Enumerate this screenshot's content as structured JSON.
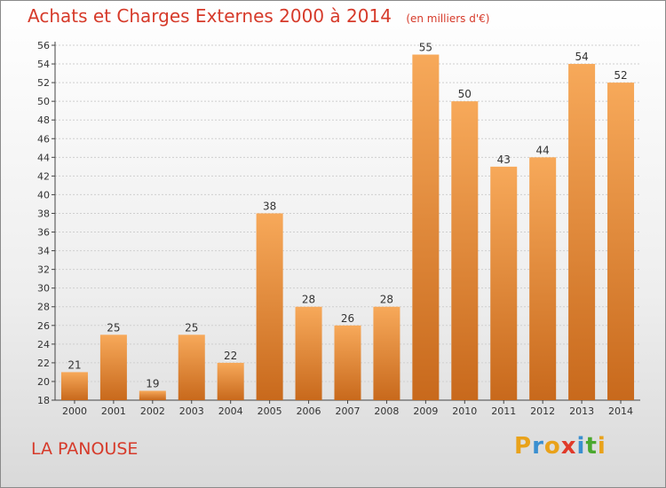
{
  "title": "Achats et Charges Externes 2000 à 2014",
  "subtitle": "(en milliers d'€)",
  "place_name": "LA PANOUSE",
  "logo": {
    "letters": [
      "P",
      "r",
      "o",
      "x",
      "i",
      "t",
      "i"
    ],
    "colors": [
      "#e9a21a",
      "#3a8fd0",
      "#e9a21a",
      "#e03a2a",
      "#3a8fd0",
      "#4aa82e",
      "#e9a21a"
    ]
  },
  "colors": {
    "bar_top": "#f7a95a",
    "bar_bottom": "#c8691c",
    "grid": "#cfcfcf",
    "axis": "#444444",
    "title": "#d63a2a"
  },
  "chart_data": {
    "type": "bar",
    "categories": [
      "2000",
      "2001",
      "2002",
      "2003",
      "2004",
      "2005",
      "2006",
      "2007",
      "2008",
      "2009",
      "2010",
      "2011",
      "2012",
      "2013",
      "2014"
    ],
    "values": [
      21,
      25,
      19,
      25,
      22,
      38,
      28,
      26,
      28,
      55,
      50,
      43,
      44,
      54,
      52
    ],
    "yticks": [
      18,
      20,
      22,
      24,
      26,
      28,
      30,
      32,
      34,
      36,
      38,
      40,
      42,
      44,
      46,
      48,
      50,
      52,
      54,
      56
    ],
    "ylim": [
      18,
      56
    ],
    "grid": true,
    "xlabel": "",
    "ylabel": ""
  }
}
